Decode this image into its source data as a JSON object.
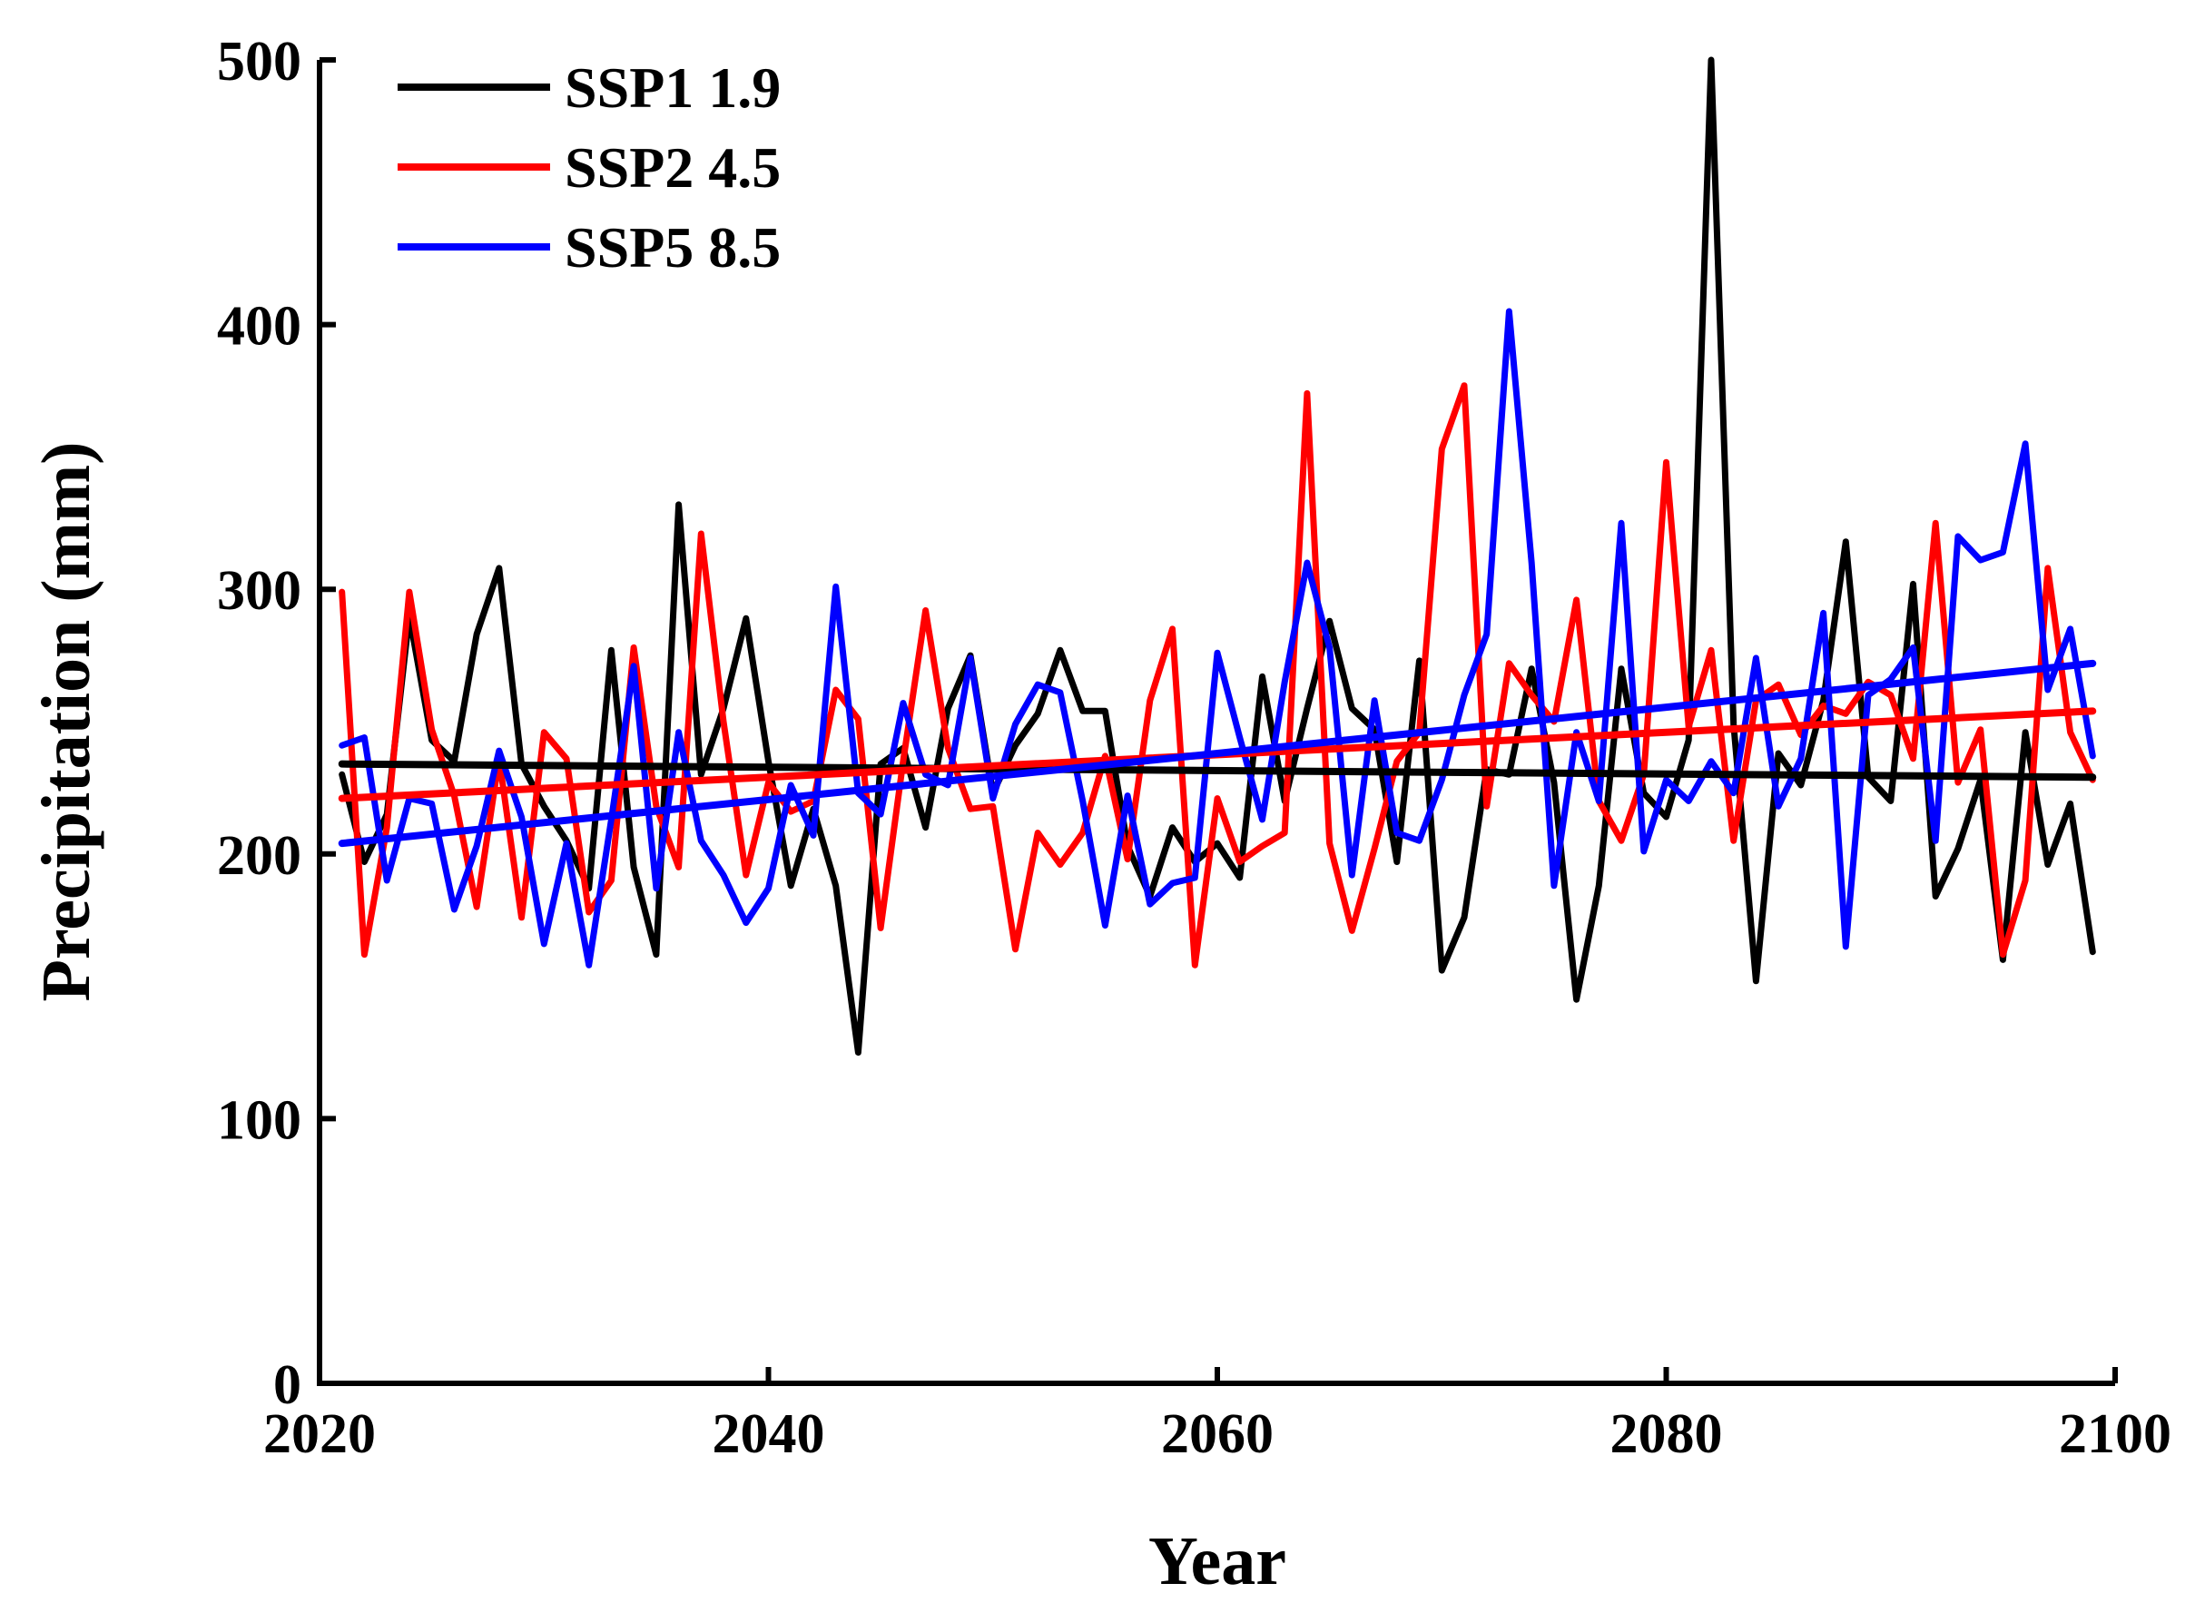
{
  "chart_data": {
    "type": "line",
    "xlabel": "Year",
    "ylabel": "Precipitation (mm)",
    "xlim": [
      2020,
      2100
    ],
    "ylim": [
      0,
      500
    ],
    "xticks": [
      2020,
      2040,
      2060,
      2080,
      2100
    ],
    "yticks": [
      0,
      100,
      200,
      300,
      400,
      500
    ],
    "grid": false,
    "legend_position": "top-left",
    "x": [
      2021,
      2022,
      2023,
      2024,
      2025,
      2026,
      2027,
      2028,
      2029,
      2030,
      2031,
      2032,
      2033,
      2034,
      2035,
      2036,
      2037,
      2038,
      2039,
      2040,
      2041,
      2042,
      2043,
      2044,
      2045,
      2046,
      2047,
      2048,
      2049,
      2050,
      2051,
      2052,
      2053,
      2054,
      2055,
      2056,
      2057,
      2058,
      2059,
      2060,
      2061,
      2062,
      2063,
      2064,
      2065,
      2066,
      2067,
      2068,
      2069,
      2070,
      2071,
      2072,
      2073,
      2074,
      2075,
      2076,
      2077,
      2078,
      2079,
      2080,
      2081,
      2082,
      2083,
      2084,
      2085,
      2086,
      2087,
      2088,
      2089,
      2090,
      2091,
      2092,
      2093,
      2094,
      2095,
      2096,
      2097,
      2098,
      2099
    ],
    "series": [
      {
        "name": "SSP1 1.9",
        "color": "#000000",
        "values": [
          230,
          197,
          215,
          290,
          243,
          235,
          283,
          308,
          234,
          218,
          205,
          187,
          277,
          195,
          162,
          332,
          230,
          255,
          289,
          235,
          188,
          217,
          188,
          125,
          234,
          240,
          210,
          255,
          275,
          223,
          241,
          253,
          277,
          254,
          254,
          203,
          184,
          210,
          197,
          204,
          191,
          267,
          220,
          255,
          288,
          255,
          247,
          197,
          273,
          156,
          176,
          232,
          230,
          270,
          227,
          145,
          188,
          270,
          223,
          214,
          243,
          500,
          249,
          152,
          238,
          226,
          258,
          318,
          229,
          220,
          302,
          184,
          202,
          228,
          160,
          246,
          196,
          219,
          163
        ],
        "trend": [
          234,
          229
        ]
      },
      {
        "name": "SSP2 4.5",
        "color": "#ff0000",
        "values": [
          299,
          162,
          210,
          299,
          247,
          222,
          180,
          236,
          176,
          246,
          236,
          178,
          190,
          278,
          218,
          195,
          321,
          250,
          192,
          227,
          216,
          220,
          262,
          251,
          172,
          235,
          292,
          240,
          217,
          218,
          164,
          208,
          196,
          208,
          237,
          198,
          258,
          285,
          158,
          221,
          197,
          203,
          208,
          374,
          204,
          171,
          202,
          235,
          246,
          353,
          377,
          218,
          272,
          260,
          250,
          296,
          220,
          205,
          230,
          348,
          248,
          277,
          205,
          258,
          264,
          245,
          256,
          253,
          265,
          260,
          236,
          325,
          227,
          247,
          162,
          190,
          308,
          246,
          228
        ],
        "trend": [
          221,
          254
        ]
      },
      {
        "name": "SSP5 8.5",
        "color": "#0000ff",
        "values": [
          241,
          244,
          190,
          221,
          219,
          179,
          203,
          239,
          214,
          166,
          204,
          158,
          213,
          271,
          187,
          246,
          205,
          192,
          174,
          187,
          226,
          207,
          301,
          223,
          215,
          257,
          230,
          226,
          274,
          221,
          249,
          264,
          261,
          220,
          173,
          222,
          181,
          189,
          191,
          276,
          244,
          213,
          265,
          310,
          278,
          192,
          258,
          208,
          205,
          228,
          260,
          283,
          405,
          310,
          188,
          246,
          220,
          325,
          201,
          228,
          220,
          235,
          223,
          274,
          218,
          236,
          291,
          165,
          260,
          266,
          278,
          205,
          320,
          311,
          314,
          355,
          262,
          285,
          237
        ],
        "trend": [
          204,
          272
        ]
      }
    ]
  }
}
